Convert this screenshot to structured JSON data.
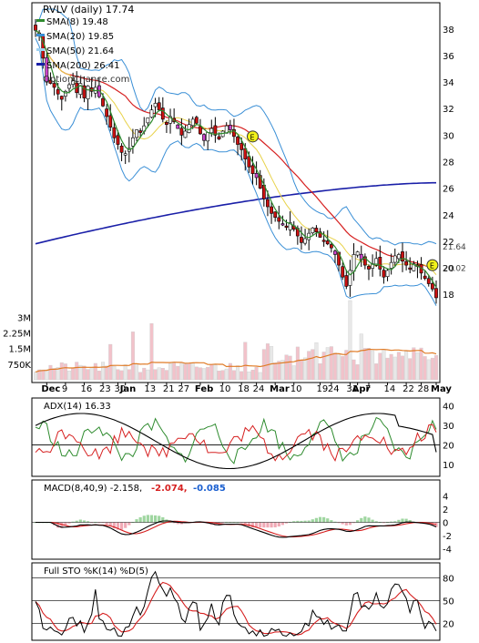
{
  "chart_data": {
    "type": "line",
    "symbol": "RVLV",
    "title": "RVLV (daily) 17.74",
    "watermark": "OptionChance.com",
    "x_labels": [
      {
        "label": "Dec",
        "i": 3
      },
      {
        "label": "9",
        "i": 8
      },
      {
        "label": "16",
        "i": 13
      },
      {
        "label": "23",
        "i": 18
      },
      {
        "label": "30",
        "i": 22
      },
      {
        "label": "Jan",
        "i": 24
      },
      {
        "label": "13",
        "i": 30
      },
      {
        "label": "21",
        "i": 35
      },
      {
        "label": "27",
        "i": 39
      },
      {
        "label": "Feb",
        "i": 44
      },
      {
        "label": "10",
        "i": 50
      },
      {
        "label": "18",
        "i": 55
      },
      {
        "label": "24",
        "i": 59
      },
      {
        "label": "Mar",
        "i": 64
      },
      {
        "label": "10",
        "i": 69
      },
      {
        "label": "19",
        "i": 76
      },
      {
        "label": "24",
        "i": 79
      },
      {
        "label": "31",
        "i": 84
      },
      {
        "label": "Apr",
        "i": 86
      },
      {
        "label": "7",
        "i": 89
      },
      {
        "label": "14",
        "i": 94
      },
      {
        "label": "22",
        "i": 99
      },
      {
        "label": "28",
        "i": 103
      },
      {
        "label": "May",
        "i": 107
      }
    ],
    "price_panel": {
      "ylim": [
        16.5,
        39.5
      ],
      "y_ticks": [
        18,
        20,
        22,
        24,
        26,
        28,
        30,
        32,
        34,
        36,
        38
      ],
      "legend": [
        {
          "label": "SMA(8) 19.48",
          "color": "#2e8b2e"
        },
        {
          "label": "SMA(20) 19.85",
          "color": "#3a8fd6"
        },
        {
          "label": "SMA(50) 21.64",
          "color": "#9fd2f2"
        },
        {
          "label": "SMA(200) 26.41",
          "color": "#1a1fa8"
        }
      ],
      "close": [
        37.9,
        37.5,
        35.8,
        34.0,
        33.9,
        33.6,
        33.1,
        32.7,
        33.3,
        33.8,
        34.1,
        33.2,
        33.9,
        32.8,
        33.7,
        33.3,
        33.6,
        32.9,
        32.2,
        31.4,
        30.6,
        29.8,
        29.3,
        28.7,
        28.6,
        29.0,
        29.8,
        30.4,
        30.2,
        30.7,
        31.3,
        31.9,
        32.4,
        31.9,
        31.2,
        30.8,
        31.4,
        31.0,
        30.5,
        30.0,
        30.3,
        30.8,
        31.2,
        30.9,
        30.1,
        29.6,
        30.2,
        30.5,
        30.0,
        29.7,
        30.3,
        30.7,
        30.4,
        29.9,
        29.3,
        28.9,
        28.2,
        27.6,
        27.1,
        26.8,
        26.0,
        25.2,
        24.6,
        24.1,
        23.8,
        23.5,
        23.3,
        23.1,
        23.4,
        22.9,
        22.4,
        21.9,
        22.2,
        22.6,
        23.0,
        22.7,
        22.3,
        22.0,
        21.8,
        21.5,
        21.0,
        20.2,
        19.3,
        18.6,
        19.8,
        21.0,
        21.2,
        20.6,
        20.2,
        19.9,
        20.3,
        20.7,
        19.9,
        19.3,
        19.8,
        20.4,
        20.9,
        21.0,
        20.5,
        20.2,
        19.9,
        20.3,
        20.1,
        19.6,
        19.2,
        18.8,
        18.4,
        17.74
      ],
      "sma8_end": 19.48,
      "sma20_end": 19.85,
      "sma50_end": 21.64,
      "sma200_end": 26.41,
      "right_labels": [
        {
          "label": "21.64",
          "value": 21.64
        },
        {
          "label": "20.02",
          "value": 20.02
        }
      ],
      "markers": [
        {
          "label": "E",
          "i": 58,
          "value": 29.9
        },
        {
          "label": "E",
          "i": 106,
          "value": 20.2
        }
      ]
    },
    "volume": {
      "ticks": [
        {
          "label": "3M",
          "value": 3000000
        },
        {
          "label": "2.25M",
          "value": 2250000
        },
        {
          "label": "1.5M",
          "value": 1500000
        },
        {
          "label": "750K",
          "value": 750000
        }
      ],
      "ylim": [
        0,
        3800000
      ],
      "avg_line_color": "#e07b26"
    },
    "adx": {
      "label": "ADX(14) 16.33",
      "ylim": [
        5,
        42
      ],
      "y_ticks": [
        10,
        20,
        30,
        40
      ],
      "adx_end": 16.33
    },
    "macd": {
      "label": "MACD(8,40,9) -2.158,",
      "signal_label": "-2.074,",
      "hist_label": "-0.085",
      "signal_color": "#d62020",
      "hist_color": "#1a5fd0",
      "ylim": [
        -5,
        5
      ],
      "y_ticks": [
        4,
        2,
        0,
        -2,
        -4
      ]
    },
    "stochastic": {
      "label": "Full STO %K(14) %D(5)",
      "ylim": [
        0,
        90
      ],
      "y_ticks": [
        20,
        50,
        80
      ]
    }
  }
}
